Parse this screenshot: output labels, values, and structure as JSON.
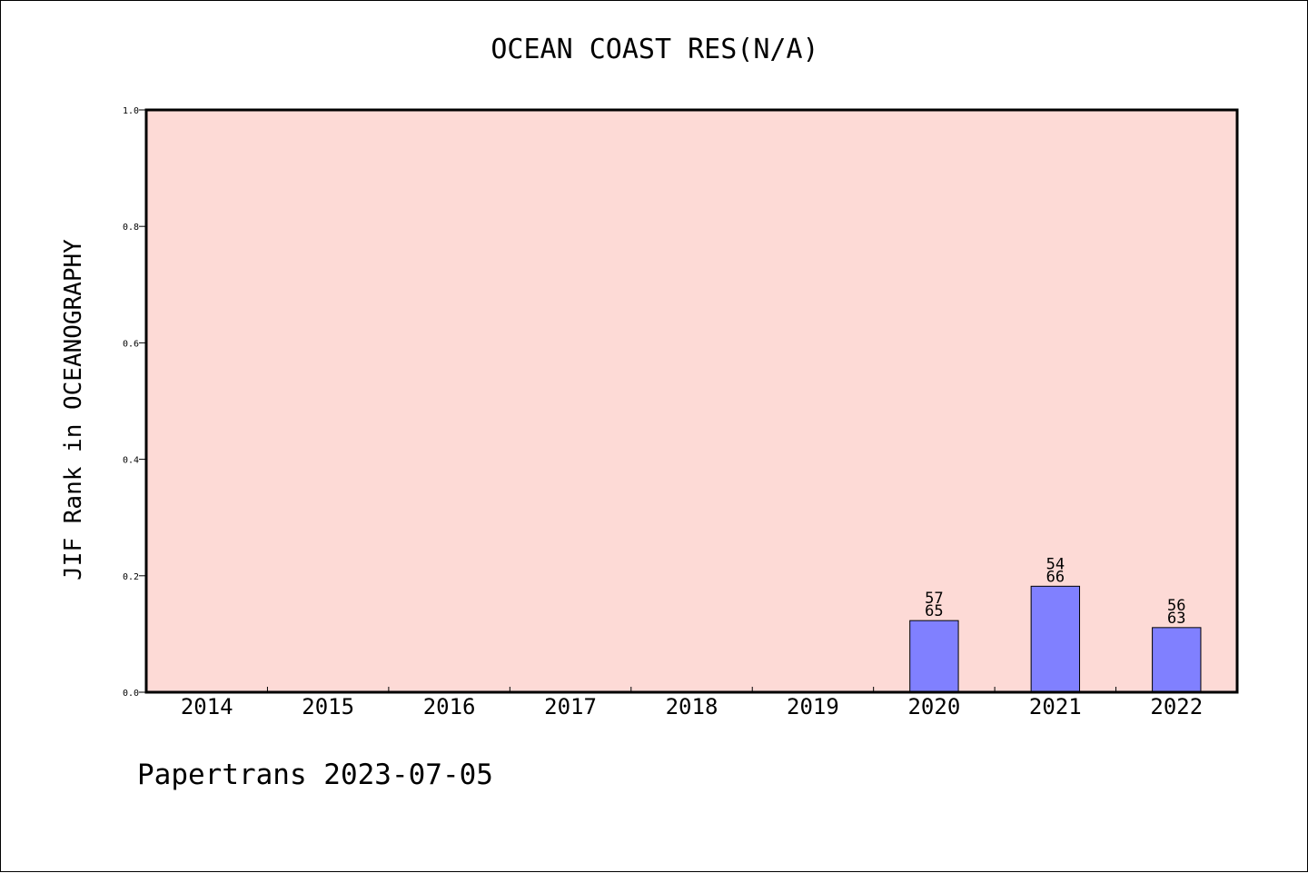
{
  "chart_data": {
    "type": "bar",
    "title": "OCEAN COAST RES(N/A)",
    "ylabel": "JIF Rank in OCEANOGRAPHY",
    "xlabel": "",
    "categories": [
      "2014",
      "2015",
      "2016",
      "2017",
      "2018",
      "2019",
      "2020",
      "2021",
      "2022"
    ],
    "values": [
      null,
      null,
      null,
      null,
      null,
      null,
      0.123,
      0.182,
      0.111
    ],
    "bar_labels": [
      null,
      null,
      null,
      null,
      null,
      null,
      {
        "rank": "57",
        "total": "65"
      },
      {
        "rank": "54",
        "total": "66"
      },
      {
        "rank": "56",
        "total": "63"
      }
    ],
    "ylim": [
      0,
      1.0
    ],
    "yticks": [
      "0.0",
      "0.2",
      "0.4",
      "0.6",
      "0.8",
      "1.0"
    ],
    "grid": false,
    "colors": {
      "plot_background": "#fddad6",
      "bar_fill": "#8080ff",
      "bar_edge": "#000000"
    }
  },
  "footer": {
    "text": "Papertrans 2023-07-05"
  }
}
